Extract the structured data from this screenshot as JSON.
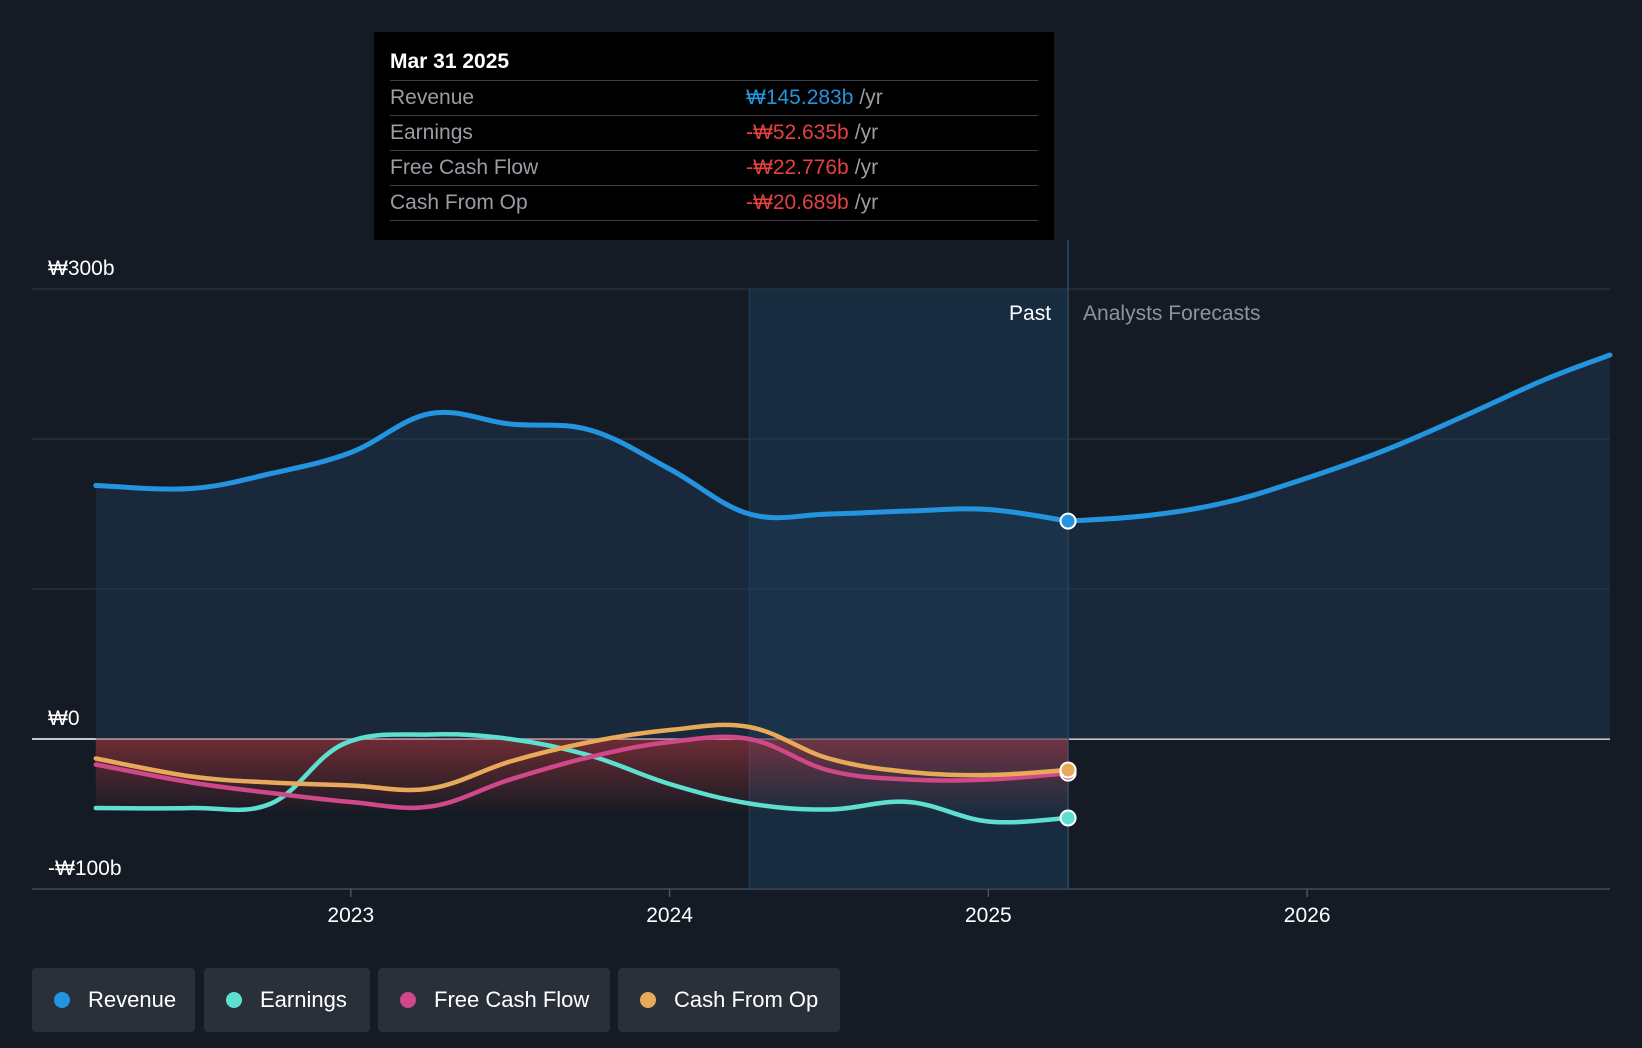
{
  "tooltip": {
    "date": "Mar 31 2025",
    "rows": [
      {
        "label": "Revenue",
        "value": "₩145.283b",
        "unit": "/yr",
        "color": "#2394df"
      },
      {
        "label": "Earnings",
        "value": "-₩52.635b",
        "unit": "/yr",
        "color": "#e64141"
      },
      {
        "label": "Free Cash Flow",
        "value": "-₩22.776b",
        "unit": "/yr",
        "color": "#e64141"
      },
      {
        "label": "Cash From Op",
        "value": "-₩20.689b",
        "unit": "/yr",
        "color": "#e64141"
      }
    ]
  },
  "labels": {
    "past": "Past",
    "forecast": "Analysts Forecasts"
  },
  "legend": [
    {
      "label": "Revenue",
      "color": "#2394df"
    },
    {
      "label": "Earnings",
      "color": "#5ee0d0"
    },
    {
      "label": "Free Cash Flow",
      "color": "#d0488a"
    },
    {
      "label": "Cash From Op",
      "color": "#e8aa5a"
    }
  ],
  "chart_data": {
    "type": "line",
    "title": "",
    "xlabel": "",
    "ylabel": "",
    "y_ticks": [
      {
        "value": 300,
        "label": "₩300b"
      },
      {
        "value": 0,
        "label": "₩0"
      },
      {
        "value": -100,
        "label": "-₩100b"
      }
    ],
    "x_ticks": [
      {
        "value": 2023,
        "label": "2023"
      },
      {
        "value": 2024,
        "label": "2024"
      },
      {
        "value": 2025,
        "label": "2025"
      },
      {
        "value": 2026,
        "label": "2026"
      }
    ],
    "xlim": [
      2022.0,
      2026.95
    ],
    "ylim": [
      -100,
      300
    ],
    "highlight_range": [
      2024.25,
      2025.25
    ],
    "past_end": 2025.25,
    "series": [
      {
        "name": "Revenue",
        "color": "#2394df",
        "points": [
          [
            2022.2,
            169
          ],
          [
            2022.5,
            167
          ],
          [
            2022.75,
            177
          ],
          [
            2023.0,
            191
          ],
          [
            2023.25,
            217
          ],
          [
            2023.5,
            210
          ],
          [
            2023.75,
            206
          ],
          [
            2024.0,
            180
          ],
          [
            2024.25,
            150
          ],
          [
            2024.5,
            150
          ],
          [
            2024.75,
            152
          ],
          [
            2025.0,
            153
          ],
          [
            2025.25,
            145.283
          ]
        ],
        "forecast": [
          [
            2025.25,
            145.283
          ],
          [
            2025.5,
            149
          ],
          [
            2025.75,
            158
          ],
          [
            2026.0,
            174
          ],
          [
            2026.25,
            193
          ],
          [
            2026.5,
            216
          ],
          [
            2026.75,
            240
          ],
          [
            2026.95,
            256
          ]
        ]
      },
      {
        "name": "Earnings",
        "color": "#5ee0d0",
        "points": [
          [
            2022.2,
            -46
          ],
          [
            2022.5,
            -46
          ],
          [
            2022.75,
            -43
          ],
          [
            2022.98,
            -3
          ],
          [
            2023.25,
            3
          ],
          [
            2023.5,
            0
          ],
          [
            2023.75,
            -11
          ],
          [
            2024.0,
            -30
          ],
          [
            2024.25,
            -43
          ],
          [
            2024.5,
            -47
          ],
          [
            2024.75,
            -42
          ],
          [
            2025.0,
            -55
          ],
          [
            2025.25,
            -52.635
          ]
        ]
      },
      {
        "name": "Free Cash Flow",
        "color": "#d0488a",
        "points": [
          [
            2022.2,
            -17
          ],
          [
            2022.5,
            -29
          ],
          [
            2022.75,
            -36
          ],
          [
            2023.0,
            -42
          ],
          [
            2023.25,
            -45
          ],
          [
            2023.5,
            -27
          ],
          [
            2023.75,
            -12
          ],
          [
            2024.0,
            -2
          ],
          [
            2024.25,
            0
          ],
          [
            2024.5,
            -21
          ],
          [
            2024.75,
            -27
          ],
          [
            2025.0,
            -27
          ],
          [
            2025.25,
            -22.776
          ]
        ]
      },
      {
        "name": "Cash From Op",
        "color": "#e8aa5a",
        "points": [
          [
            2022.2,
            -13
          ],
          [
            2022.5,
            -25
          ],
          [
            2022.75,
            -29
          ],
          [
            2023.0,
            -31
          ],
          [
            2023.25,
            -33
          ],
          [
            2023.5,
            -15
          ],
          [
            2023.75,
            -2
          ],
          [
            2024.0,
            6
          ],
          [
            2024.25,
            8
          ],
          [
            2024.5,
            -13
          ],
          [
            2024.75,
            -22
          ],
          [
            2025.0,
            -24
          ],
          [
            2025.25,
            -20.689
          ]
        ]
      }
    ]
  }
}
